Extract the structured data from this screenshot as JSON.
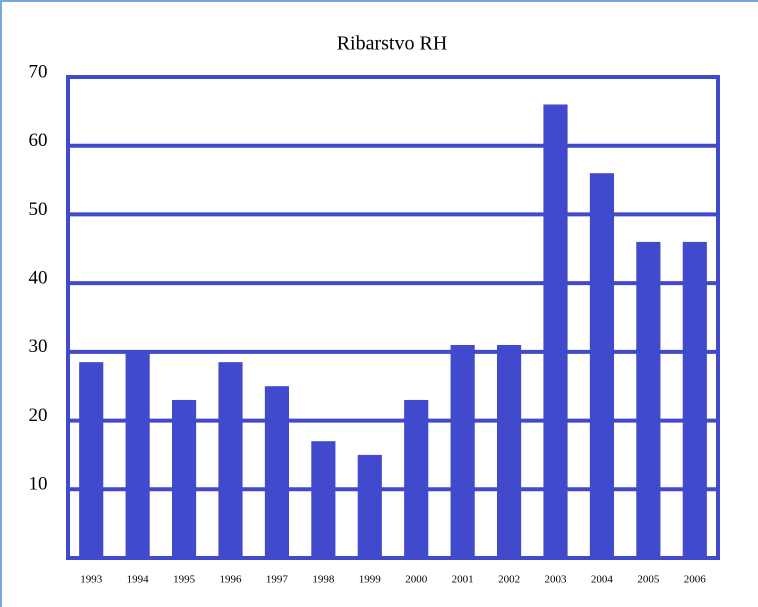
{
  "chart_data": {
    "type": "bar",
    "title": "Ribarstvo RH",
    "categories": [
      "1993",
      "1994",
      "1995",
      "1996",
      "1997",
      "1998",
      "1999",
      "2000",
      "2001",
      "2002",
      "2003",
      "2004",
      "2005",
      "2006"
    ],
    "values": [
      28.5,
      30,
      23,
      28.5,
      25,
      17,
      15,
      23,
      31,
      31,
      66,
      56,
      46,
      46
    ],
    "color": "#4149cc",
    "ylim": [
      0,
      70
    ],
    "yticks": [
      10,
      20,
      30,
      40,
      50,
      60,
      70
    ],
    "grid": true
  }
}
